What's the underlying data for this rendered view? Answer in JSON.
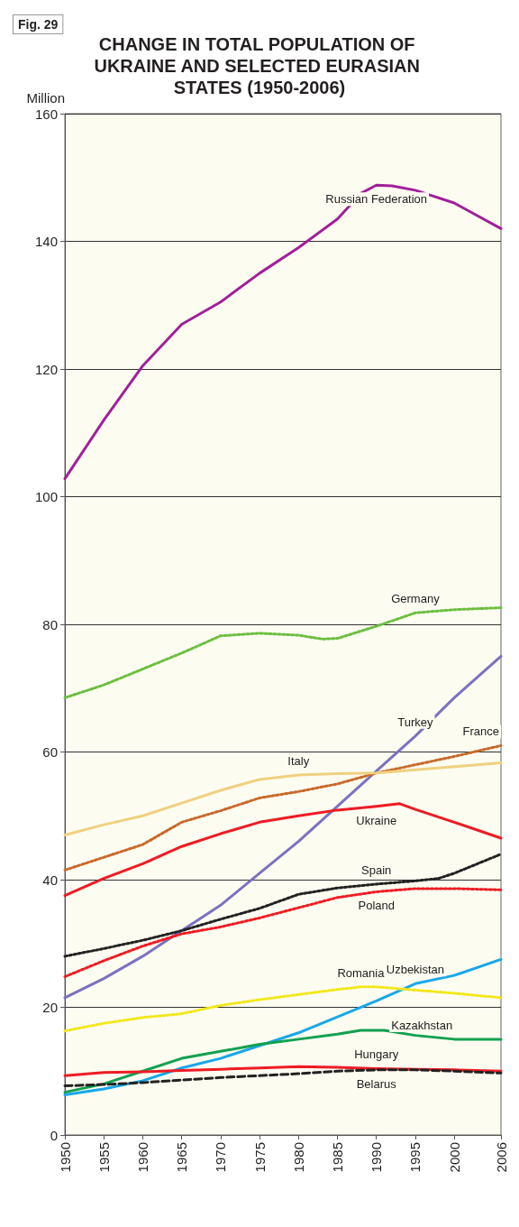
{
  "chart_data": {
    "type": "line",
    "title": "CHANGE IN TOTAL POPULATION OF UKRAINE AND SELECTED EURASIAN STATES (1950-2006)",
    "ylabel": "Million",
    "annotations": [
      "Fig. 29"
    ],
    "xlim": [
      1950,
      2006
    ],
    "xticks": [
      1950,
      1955,
      1960,
      1965,
      1970,
      1975,
      1980,
      1985,
      1990,
      1995,
      2000,
      2006
    ],
    "ylim": [
      0,
      160
    ],
    "yticks": [
      0,
      20,
      40,
      60,
      80,
      100,
      120,
      140,
      160
    ],
    "grid": "y",
    "marker": "none",
    "series": [
      {
        "name": "Russian Federation",
        "color": "#a0209a",
        "line_style": "solid",
        "x": [
          1950,
          1955,
          1960,
          1965,
          1970,
          1975,
          1980,
          1985,
          1988,
          1990,
          1992,
          1995,
          2000,
          2006
        ],
        "values": [
          102.8,
          112,
          120.5,
          127,
          130.5,
          135,
          139,
          143.5,
          147.5,
          148.8,
          148.7,
          148,
          146,
          142
        ]
      },
      {
        "name": "Germany",
        "color": "#6cbf3f",
        "line_style": "dotted",
        "x": [
          1950,
          1955,
          1960,
          1965,
          1970,
          1975,
          1980,
          1983,
          1985,
          1990,
          1995,
          2000,
          2006
        ],
        "values": [
          68.5,
          70.5,
          73,
          75.5,
          78.2,
          78.6,
          78.3,
          77.7,
          77.8,
          79.7,
          81.8,
          82.3,
          82.6
        ]
      },
      {
        "name": "Turkey",
        "color": "#7b72c0",
        "line_style": "solid",
        "x": [
          1950,
          1955,
          1960,
          1965,
          1970,
          1975,
          1980,
          1985,
          1990,
          1995,
          2000,
          2006
        ],
        "values": [
          21.5,
          24.5,
          28,
          32,
          36,
          41,
          46,
          51.5,
          57,
          62.5,
          68.5,
          75
        ]
      },
      {
        "name": "France",
        "color": "#c8692c",
        "line_style": "dotted",
        "x": [
          1950,
          1955,
          1960,
          1965,
          1970,
          1975,
          1980,
          1985,
          1990,
          1995,
          2000,
          2006
        ],
        "values": [
          41.5,
          43.5,
          45.5,
          49,
          50.8,
          52.8,
          53.8,
          55,
          56.7,
          58,
          59.3,
          61
        ]
      },
      {
        "name": "Italy",
        "color": "#f0d080",
        "line_style": "solid",
        "x": [
          1950,
          1955,
          1960,
          1965,
          1970,
          1975,
          1980,
          1985,
          1990,
          1995,
          2000,
          2006
        ],
        "values": [
          47,
          48.6,
          50,
          52,
          54,
          55.7,
          56.4,
          56.6,
          56.7,
          57.2,
          57.7,
          58.3
        ]
      },
      {
        "name": "Ukraine",
        "color": "#ee1c24",
        "line_style": "solid",
        "x": [
          1950,
          1955,
          1960,
          1965,
          1970,
          1975,
          1980,
          1985,
          1990,
          1993,
          1995,
          2000,
          2006
        ],
        "values": [
          37.5,
          40.2,
          42.5,
          45.2,
          47.2,
          49,
          50,
          50.9,
          51.5,
          51.9,
          51,
          49,
          46.5
        ]
      },
      {
        "name": "Spain",
        "color": "#222222",
        "line_style": "dotted",
        "x": [
          1950,
          1955,
          1960,
          1965,
          1970,
          1975,
          1980,
          1985,
          1990,
          1995,
          1998,
          2000,
          2006
        ],
        "values": [
          28,
          29.2,
          30.5,
          32,
          33.8,
          35.5,
          37.7,
          38.7,
          39.3,
          39.8,
          40.2,
          41,
          44
        ]
      },
      {
        "name": "Poland",
        "color": "#ee1c24",
        "line_style": "dotted",
        "x": [
          1950,
          1955,
          1960,
          1965,
          1970,
          1975,
          1980,
          1985,
          1990,
          1995,
          2000,
          2006
        ],
        "values": [
          24.8,
          27.3,
          29.6,
          31.5,
          32.6,
          34,
          35.6,
          37.2,
          38.1,
          38.6,
          38.6,
          38.4
        ]
      },
      {
        "name": "Uzbekistan",
        "color": "#1aa7e8",
        "line_style": "solid",
        "x": [
          1950,
          1955,
          1960,
          1965,
          1970,
          1975,
          1980,
          1985,
          1990,
          1995,
          2000,
          2006
        ],
        "values": [
          6.3,
          7.2,
          8.5,
          10.5,
          12,
          14,
          16,
          18.5,
          21,
          23.7,
          25,
          27.5
        ]
      },
      {
        "name": "Romania",
        "color": "#f2e81a",
        "line_style": "dotted",
        "x": [
          1950,
          1955,
          1960,
          1965,
          1970,
          1975,
          1980,
          1985,
          1988,
          1990,
          1995,
          2000,
          2006
        ],
        "values": [
          16.3,
          17.5,
          18.4,
          19,
          20.3,
          21.2,
          22,
          22.8,
          23.2,
          23.2,
          22.7,
          22.2,
          21.5
        ]
      },
      {
        "name": "Kazakhstan",
        "color": "#12a050",
        "line_style": "solid",
        "x": [
          1950,
          1955,
          1960,
          1965,
          1970,
          1975,
          1980,
          1985,
          1988,
          1991,
          1995,
          2000,
          2006
        ],
        "values": [
          6.7,
          8,
          10,
          12,
          13.1,
          14.2,
          15,
          15.8,
          16.4,
          16.4,
          15.6,
          15,
          15
        ]
      },
      {
        "name": "Hungary",
        "color": "#ee1c24",
        "line_style": "solid",
        "x": [
          1950,
          1955,
          1960,
          1965,
          1970,
          1975,
          1980,
          1985,
          1990,
          1995,
          2000,
          2006
        ],
        "values": [
          9.3,
          9.8,
          9.9,
          10.1,
          10.3,
          10.5,
          10.7,
          10.6,
          10.4,
          10.3,
          10.2,
          10
        ]
      },
      {
        "name": "Belarus",
        "color": "#222222",
        "line_style": "dashed",
        "x": [
          1950,
          1955,
          1960,
          1965,
          1970,
          1975,
          1980,
          1985,
          1990,
          1995,
          2000,
          2006
        ],
        "values": [
          7.7,
          7.9,
          8.2,
          8.6,
          9,
          9.3,
          9.6,
          10,
          10.2,
          10.2,
          10,
          9.7
        ]
      }
    ]
  }
}
